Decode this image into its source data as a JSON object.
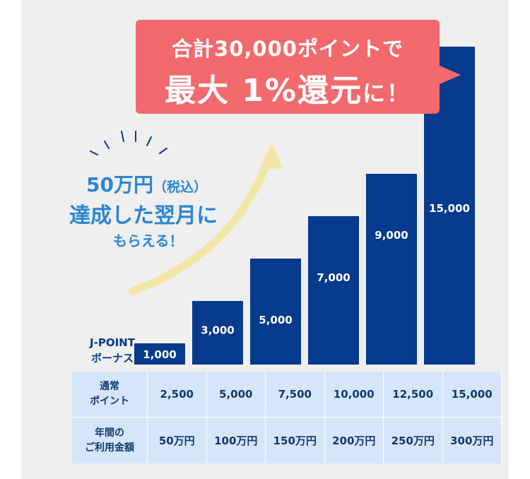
{
  "callout": {
    "line1": "合計30,000ポイントで",
    "line2_a": "最大 1%還元",
    "line2_b": "に！"
  },
  "note": {
    "line1_a": "50万円",
    "line1_b": "（税込）",
    "line2": "達成した翌月に",
    "line3": "もらえる！"
  },
  "bonus_label": [
    "J-POINT",
    "ボーナス"
  ],
  "chart_data": {
    "type": "bar",
    "categories": [
      "50万円",
      "100万円",
      "150万円",
      "200万円",
      "250万円",
      "300万円"
    ],
    "series": [
      {
        "name": "J-POINT ボーナス",
        "values": [
          1000,
          3000,
          5000,
          7000,
          9000,
          15000
        ]
      }
    ],
    "value_labels": [
      "1,000",
      "3,000",
      "5,000",
      "7,000",
      "9,000",
      "15,000"
    ],
    "ylim": [
      0,
      15000
    ],
    "bar_color": "#063a8c",
    "grid": false
  },
  "table": {
    "rows": [
      {
        "header": [
          "通常",
          "ポイント"
        ],
        "cells": [
          "2,500",
          "5,000",
          "7,500",
          "10,000",
          "12,500",
          "15,000"
        ]
      },
      {
        "header": [
          "年間の",
          "ご利用金額"
        ],
        "cells": [
          "50万円",
          "100万円",
          "150万円",
          "200万円",
          "250万円",
          "300万円"
        ]
      }
    ]
  },
  "colors": {
    "panel_bg": "#efefef",
    "callout_bg": "#f26a6d",
    "note_text": "#2a86d4",
    "arrow": "#f2e6a6",
    "table_bg": "#d6e6fa"
  }
}
